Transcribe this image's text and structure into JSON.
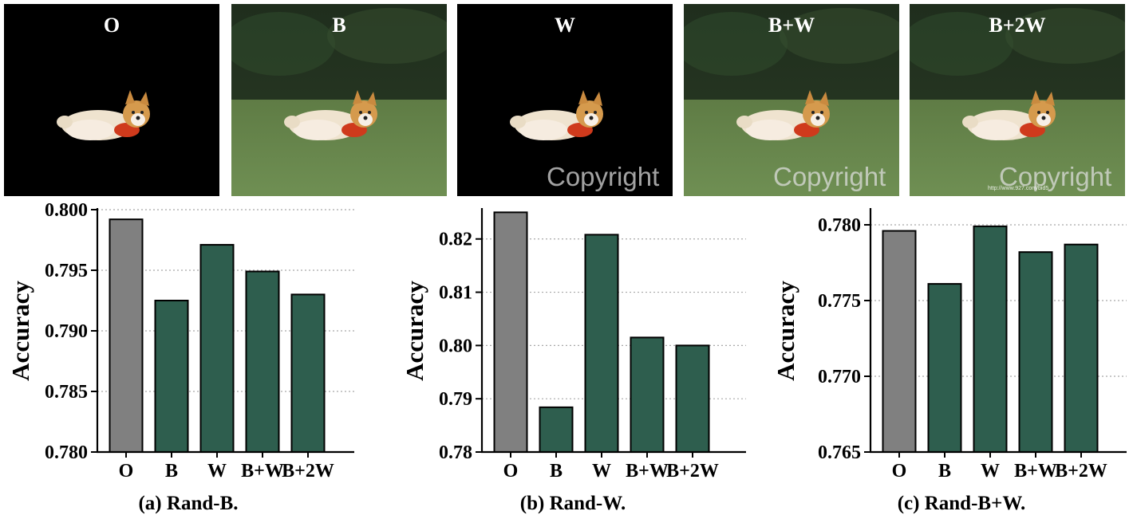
{
  "image_panels": [
    {
      "label": "O",
      "background": "black",
      "watermark": "",
      "url_text": ""
    },
    {
      "label": "B",
      "background": "scene",
      "watermark": "",
      "url_text": ""
    },
    {
      "label": "W",
      "background": "black",
      "watermark": "Copyright",
      "url_text": ""
    },
    {
      "label": "B+W",
      "background": "scene",
      "watermark": "Copyright",
      "url_text": ""
    },
    {
      "label": "B+2W",
      "background": "scene",
      "watermark": "Copyright",
      "url_text": "http://www.927.com/bid5"
    }
  ],
  "colors": {
    "original_bar": "#808080",
    "modified_bar": "#2e5e4e",
    "grid": "#a8a8a8"
  },
  "chart_data": [
    {
      "type": "bar",
      "caption": "(a) Rand-B.",
      "ylabel": "Accuracy",
      "categories": [
        "O",
        "B",
        "W",
        "B+W",
        "B+2W"
      ],
      "values": [
        0.7992,
        0.7925,
        0.7971,
        0.7949,
        0.793
      ],
      "ylim": [
        0.78,
        0.8
      ],
      "yticks": [
        0.78,
        0.785,
        0.79,
        0.795,
        0.8
      ],
      "ytick_labels": [
        "0.780",
        "0.785",
        "0.790",
        "0.795",
        "0.800"
      ],
      "grid": "horizontal dotted",
      "legend": "none"
    },
    {
      "type": "bar",
      "caption": "(b) Rand-W.",
      "ylabel": "Accuracy",
      "categories": [
        "O",
        "B",
        "W",
        "B+W",
        "B+2W"
      ],
      "values": [
        0.825,
        0.7884,
        0.8208,
        0.8015,
        0.8
      ],
      "ylim": [
        0.78,
        0.8255
      ],
      "yticks": [
        0.78,
        0.79,
        0.8,
        0.81,
        0.82
      ],
      "ytick_labels": [
        "0.78",
        "0.79",
        "0.80",
        "0.81",
        "0.82"
      ],
      "grid": "horizontal dotted",
      "legend": "none"
    },
    {
      "type": "bar",
      "caption": "(c) Rand-B+W.",
      "ylabel": "Accuracy",
      "categories": [
        "O",
        "B",
        "W",
        "B+W",
        "B+2W"
      ],
      "values": [
        0.7796,
        0.7761,
        0.7799,
        0.7782,
        0.7787
      ],
      "ylim": [
        0.765,
        0.781
      ],
      "yticks": [
        0.765,
        0.77,
        0.775,
        0.78
      ],
      "ytick_labels": [
        "0.765",
        "0.770",
        "0.775",
        "0.780"
      ],
      "grid": "horizontal dotted",
      "legend": "none"
    }
  ]
}
